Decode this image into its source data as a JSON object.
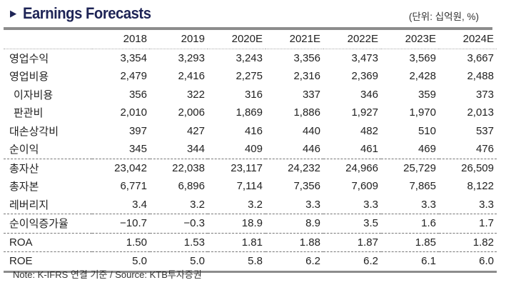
{
  "title": "Earnings Forecasts",
  "title_icon": "triangle-right-icon",
  "unit": "(단위: 십억원, %)",
  "columns": [
    "2018",
    "2019",
    "2020E",
    "2021E",
    "2022E",
    "2023E",
    "2024E"
  ],
  "rows": [
    {
      "label": "영업수익",
      "values": [
        "3,354",
        "3,293",
        "3,243",
        "3,356",
        "3,473",
        "3,569",
        "3,667"
      ]
    },
    {
      "label": "영업비용",
      "values": [
        "2,479",
        "2,416",
        "2,275",
        "2,316",
        "2,369",
        "2,428",
        "2,488"
      ]
    },
    {
      "label": "이자비용",
      "values": [
        "356",
        "322",
        "316",
        "337",
        "346",
        "359",
        "373"
      ]
    },
    {
      "label": "판관비",
      "values": [
        "2,010",
        "2,006",
        "1,869",
        "1,886",
        "1,927",
        "1,970",
        "2,013"
      ]
    },
    {
      "label": "대손상각비",
      "values": [
        "397",
        "427",
        "416",
        "440",
        "482",
        "510",
        "537"
      ]
    },
    {
      "label": "순이익",
      "values": [
        "345",
        "344",
        "409",
        "446",
        "461",
        "469",
        "476"
      ]
    },
    {
      "label": "총자산",
      "values": [
        "23,042",
        "22,038",
        "23,117",
        "24,232",
        "24,966",
        "25,729",
        "26,509"
      ]
    },
    {
      "label": "총자본",
      "values": [
        "6,771",
        "6,896",
        "7,114",
        "7,356",
        "7,609",
        "7,865",
        "8,122"
      ]
    },
    {
      "label": "레버리지",
      "values": [
        "3.4",
        "3.2",
        "3.2",
        "3.3",
        "3.3",
        "3.3",
        "3.3"
      ]
    },
    {
      "label": "순이익증가율",
      "values": [
        "−10.7",
        "−0.3",
        "18.9",
        "8.9",
        "3.5",
        "1.6",
        "1.7"
      ]
    },
    {
      "label": "ROA",
      "values": [
        "1.50",
        "1.53",
        "1.81",
        "1.88",
        "1.87",
        "1.85",
        "1.82"
      ]
    },
    {
      "label": "ROE",
      "values": [
        "5.0",
        "5.0",
        "5.8",
        "6.2",
        "6.2",
        "6.1",
        "6.0"
      ]
    }
  ],
  "note": "Note: K-IFRS 연결 기준 / Source: KTB투자증권",
  "colors": {
    "title": "#1e2456",
    "rule": "#8c8c8c"
  }
}
